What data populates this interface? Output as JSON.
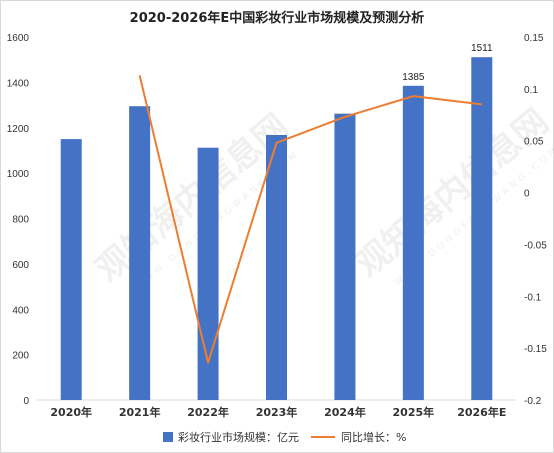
{
  "chart_data": {
    "type": "bar",
    "title": "2020-2026年E中国彩妆行业市场规模及预测分析",
    "categories": [
      "2020年",
      "2021年",
      "2022年",
      "2023年",
      "2024年",
      "2025年",
      "2026年E"
    ],
    "series": [
      {
        "name": "彩妆行业市场规模：亿元",
        "type": "bar",
        "axis": "left",
        "values": [
          1150,
          1295,
          1112,
          1168,
          1262,
          1385,
          1511
        ],
        "data_labels": [
          "",
          "",
          "",
          "",
          "",
          "1385",
          "1511"
        ]
      },
      {
        "name": "同比增长：%",
        "type": "line",
        "axis": "right",
        "values": [
          null,
          0.113,
          -0.164,
          0.048,
          0.073,
          0.093,
          0.085
        ]
      }
    ],
    "left_axis": {
      "ylim": [
        0,
        1600
      ],
      "ticks": [
        "0",
        "200",
        "400",
        "600",
        "800",
        "1000",
        "1200",
        "1400",
        "1600"
      ]
    },
    "right_axis": {
      "ylim": [
        -0.2,
        0.15
      ],
      "ticks": [
        "-0.2",
        "-0.15",
        "-0.1",
        "-0.05",
        "0",
        "0.05",
        "0.1",
        "0.15"
      ]
    },
    "grid": false,
    "legend_position": "bottom",
    "colors": {
      "bar": "#4472c4",
      "line": "#ed7d31"
    }
  },
  "watermark": {
    "text": "观知海内信息网",
    "url": "WWW.DONGFANGWANG.COM"
  }
}
